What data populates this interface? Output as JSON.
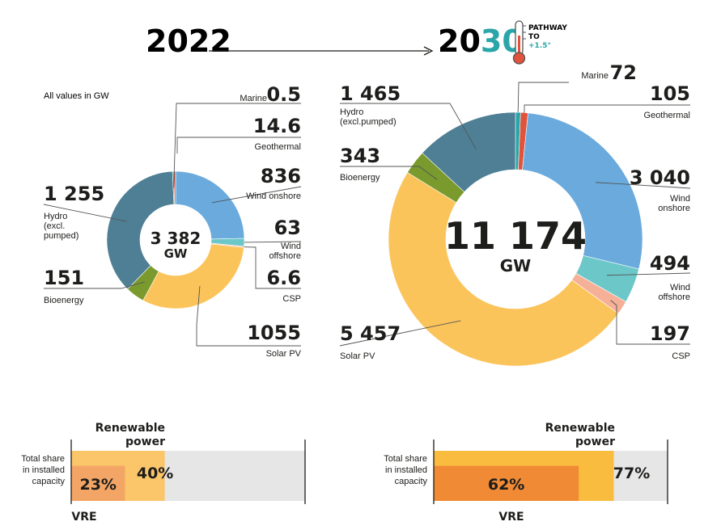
{
  "header": {
    "year_2022": "2022",
    "year_2030_a": "20",
    "year_2030_b": "30",
    "pathway": [
      "PATHWAY",
      "TO",
      "+1.5°"
    ]
  },
  "note": "All values in GW",
  "colors": {
    "hydro": "#4f7f95",
    "bioenergy": "#7a9a2e",
    "solar": "#fbc45b",
    "wind_onshore": "#6aaadd",
    "wind_offshore": "#6cc7c9",
    "csp": "#f5b097",
    "geothermal": "#e0533c",
    "marine": "#2aa5a8",
    "accent_teal": "#2aa5a8",
    "re_2022": "#fbc56a",
    "vre_2022": "#f3a565",
    "re_2030": "#f9bc3e",
    "vre_2030": "#f08a35",
    "bar_bg": "#e6e6e6"
  },
  "chart_data": [
    {
      "type": "pie",
      "subtype": "donut",
      "year": "2022",
      "unit": "GW",
      "total_label": "3 382",
      "total_unit": "GW",
      "slices": [
        {
          "key": "wind_onshore",
          "label": "Wind onshore",
          "label_lines": [
            "Wind onshore"
          ],
          "value": 836,
          "value_label": "836"
        },
        {
          "key": "wind_offshore",
          "label": "Wind offshore",
          "label_lines": [
            "Wind",
            "offshore"
          ],
          "value": 63,
          "value_label": "63"
        },
        {
          "key": "csp",
          "label": "CSP",
          "label_lines": [
            "CSP"
          ],
          "value": 6.6,
          "value_label": "6.6"
        },
        {
          "key": "solar",
          "label": "Solar PV",
          "label_lines": [
            "Solar PV"
          ],
          "value": 1055,
          "value_label": "1055"
        },
        {
          "key": "bioenergy",
          "label": "Bioenergy",
          "label_lines": [
            "Bioenergy"
          ],
          "value": 151,
          "value_label": "151"
        },
        {
          "key": "hydro",
          "label": "Hydro (excl. pumped)",
          "label_lines": [
            "Hydro",
            "(excl.",
            "pumped)"
          ],
          "value": 1255,
          "value_label": "1 255"
        },
        {
          "key": "marine",
          "label": "Marine",
          "label_lines": [
            "Marine"
          ],
          "value": 0.5,
          "value_label": "0.5"
        },
        {
          "key": "geothermal",
          "label": "Geothermal",
          "label_lines": [
            "Geothermal"
          ],
          "value": 14.6,
          "value_label": "14.6"
        }
      ]
    },
    {
      "type": "pie",
      "subtype": "donut",
      "year": "2030",
      "unit": "GW",
      "total_label": "11 174",
      "total_unit": "GW",
      "slices": [
        {
          "key": "marine",
          "label": "Marine",
          "label_lines": [
            "Marine"
          ],
          "value": 72,
          "value_label": "72"
        },
        {
          "key": "geothermal",
          "label": "Geothermal",
          "label_lines": [
            "Geothermal"
          ],
          "value": 105,
          "value_label": "105"
        },
        {
          "key": "wind_onshore",
          "label": "Wind onshore",
          "label_lines": [
            "Wind",
            "onshore"
          ],
          "value": 3040,
          "value_label": "3 040"
        },
        {
          "key": "wind_offshore",
          "label": "Wind offshore",
          "label_lines": [
            "Wind",
            "offshore"
          ],
          "value": 494,
          "value_label": "494"
        },
        {
          "key": "csp",
          "label": "CSP",
          "label_lines": [
            "CSP"
          ],
          "value": 197,
          "value_label": "197"
        },
        {
          "key": "solar",
          "label": "Solar PV",
          "label_lines": [
            "Solar PV"
          ],
          "value": 5457,
          "value_label": "5 457"
        },
        {
          "key": "bioenergy",
          "label": "Bioenergy",
          "label_lines": [
            "Bioenergy"
          ],
          "value": 343,
          "value_label": "343"
        },
        {
          "key": "hydro",
          "label": "Hydro (excl.pumped)",
          "label_lines": [
            "Hydro",
            "(excl.pumped)"
          ],
          "value": 1465,
          "value_label": "1 465"
        }
      ]
    },
    {
      "type": "bar",
      "year": "2022",
      "ylabel_lines": [
        "Total share",
        "in installed",
        "capacity"
      ],
      "renewable_title_lines": [
        "Renewable",
        "power"
      ],
      "vre_title": "VRE",
      "series": [
        {
          "name": "Renewable power",
          "value": 40,
          "label": "40%"
        },
        {
          "name": "VRE",
          "value": 23,
          "label": "23%"
        }
      ],
      "xlim": [
        0,
        100
      ]
    },
    {
      "type": "bar",
      "year": "2030",
      "ylabel_lines": [
        "Total share",
        "in installed",
        "capacity"
      ],
      "renewable_title_lines": [
        "Renewable",
        "power"
      ],
      "vre_title": "VRE",
      "series": [
        {
          "name": "Renewable power",
          "value": 77,
          "label": "77%"
        },
        {
          "name": "VRE",
          "value": 62,
          "label": "62%"
        }
      ],
      "xlim": [
        0,
        100
      ]
    }
  ]
}
